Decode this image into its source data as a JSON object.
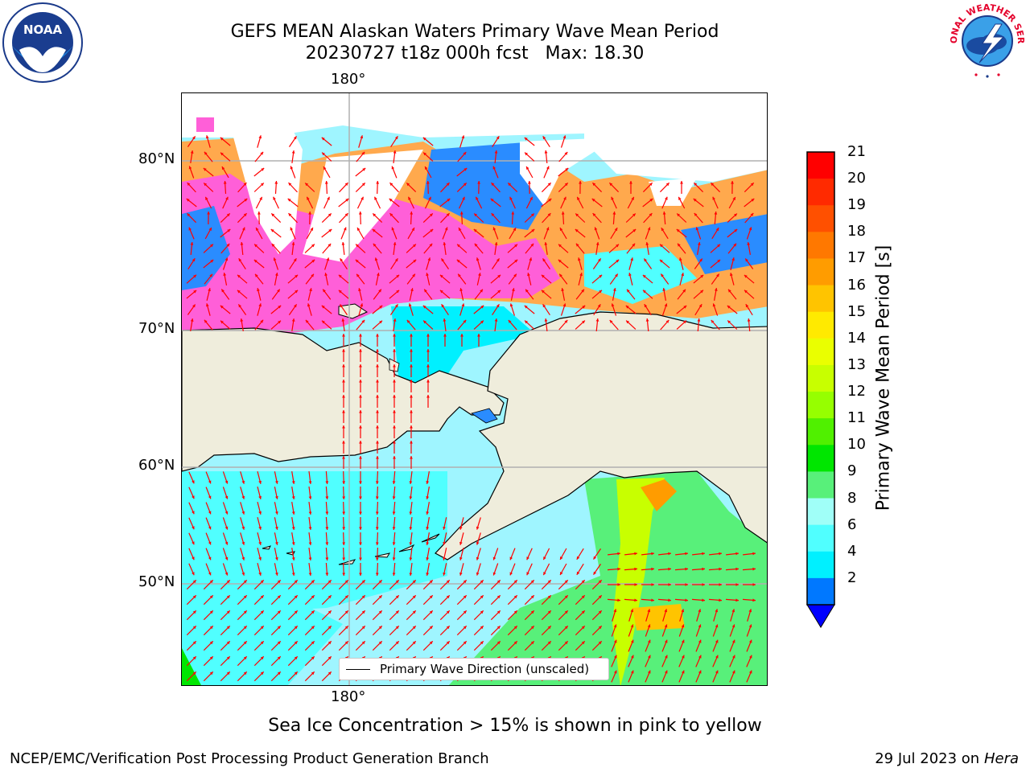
{
  "header": {
    "title_line1": "GEFS MEAN Alaskan Waters Primary Wave Mean Period",
    "title_line2": "20230727 t18z 000h fcst   Max: 18.30"
  },
  "logos": {
    "left_name": "NOAA",
    "left_ring_text": "NATIONAL OCEANIC AND ATMOSPHERIC ADMINISTRATION · U.S. DEPARTMENT OF COMMERCE",
    "right_ring_text": "NATIONAL WEATHER SERVICE"
  },
  "map": {
    "lon_label_top": "180°",
    "lon_label_bottom": "180°",
    "lat_labels": [
      "80°N",
      "70°N",
      "60°N",
      "50°N"
    ],
    "legend_label": "Primary Wave Direction (unscaled)",
    "arrow_color": "#ff0000",
    "land_color": "#efeddc",
    "grid_color": "#b0b0b0"
  },
  "colorbar": {
    "label": "Primary Wave Mean Period [s]",
    "ticks": [
      "21",
      "20",
      "19",
      "18",
      "17",
      "16",
      "15",
      "14",
      "13",
      "12",
      "11",
      "10",
      "9",
      "8",
      "6",
      "4",
      "2"
    ],
    "colors": [
      "#ff0000",
      "#ff2a00",
      "#ff5000",
      "#ff7800",
      "#ff9c00",
      "#ffc400",
      "#ffea00",
      "#eaff00",
      "#c8ff00",
      "#96ff00",
      "#50f000",
      "#00e600",
      "#58f07a",
      "#a0fff8",
      "#50ffff",
      "#00f0ff",
      "#0078ff"
    ],
    "extend_color": "#0000ff"
  },
  "chart_data": {
    "type": "heatmap",
    "title": "GEFS MEAN Alaskan Waters Primary Wave Mean Period",
    "subtitle": "20230727 t18z 000h fcst   Max: 18.30",
    "max_value": 18.3,
    "colorbar_label": "Primary Wave Mean Period [s]",
    "colorbar_ticks": [
      2,
      4,
      6,
      8,
      9,
      10,
      11,
      12,
      13,
      14,
      15,
      16,
      17,
      18,
      19,
      20,
      21
    ],
    "colorbar_extend": "min",
    "legend": "Primary Wave Direction (unscaled)",
    "legend_placement": "bottom-center",
    "lat_gridlines": [
      "80°N",
      "70°N",
      "60°N",
      "50°N"
    ],
    "lon_gridlines": [
      "180°"
    ],
    "grid": true
  },
  "footer": {
    "note": "Sea Ice Concentration > 15% is shown in pink to yellow",
    "left": "NCEP/EMC/Verification Post Processing Product Generation Branch",
    "right_date": "29 Jul 2023 on ",
    "right_host": "Hera"
  }
}
